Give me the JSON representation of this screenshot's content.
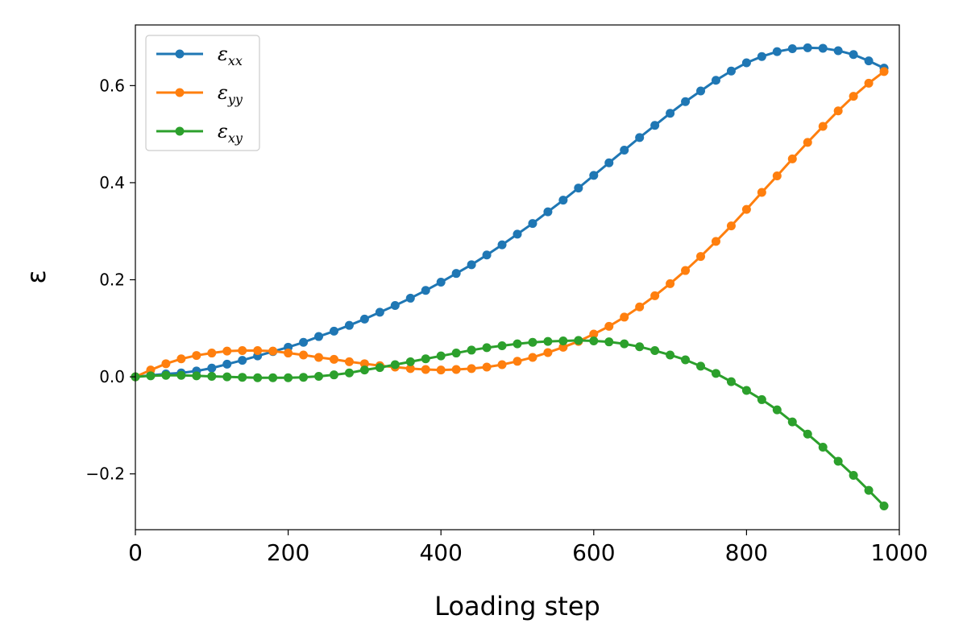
{
  "chart_data": {
    "type": "line",
    "title": "",
    "xlabel": "Loading step",
    "ylabel": "ε",
    "xlim": [
      0,
      1000
    ],
    "ylim": [
      -0.315,
      0.725
    ],
    "xticks": [
      0,
      200,
      400,
      600,
      800,
      1000
    ],
    "xtick_labels": [
      "0",
      "200",
      "400",
      "600",
      "800",
      "1000"
    ],
    "yticks": [
      -0.2,
      0.0,
      0.2,
      0.4,
      0.6
    ],
    "ytick_labels": [
      "−0.2",
      "0.0",
      "0.2",
      "0.4",
      "0.6"
    ],
    "grid": false,
    "legend_position": "top-left",
    "x": [
      0,
      20,
      40,
      60,
      80,
      100,
      120,
      140,
      160,
      180,
      200,
      220,
      240,
      260,
      280,
      300,
      320,
      340,
      360,
      380,
      400,
      420,
      440,
      460,
      480,
      500,
      520,
      540,
      560,
      580,
      600,
      620,
      640,
      660,
      680,
      700,
      720,
      740,
      760,
      780,
      800,
      820,
      840,
      860,
      880,
      900,
      920,
      940,
      960,
      980
    ],
    "series": [
      {
        "name": "ε",
        "subscript": "xx",
        "color": "#1f77b4",
        "values": [
          0.0,
          0.003,
          0.006,
          0.008,
          0.012,
          0.018,
          0.026,
          0.034,
          0.043,
          0.052,
          0.061,
          0.071,
          0.083,
          0.094,
          0.106,
          0.119,
          0.133,
          0.147,
          0.162,
          0.178,
          0.195,
          0.213,
          0.231,
          0.251,
          0.272,
          0.294,
          0.316,
          0.34,
          0.364,
          0.389,
          0.415,
          0.441,
          0.467,
          0.493,
          0.518,
          0.543,
          0.567,
          0.589,
          0.611,
          0.63,
          0.647,
          0.66,
          0.67,
          0.676,
          0.678,
          0.677,
          0.672,
          0.664,
          0.651,
          0.636
        ]
      },
      {
        "name": "ε",
        "subscript": "yy",
        "color": "#ff7f0e",
        "values": [
          0.0,
          0.014,
          0.027,
          0.037,
          0.044,
          0.049,
          0.053,
          0.054,
          0.054,
          0.053,
          0.049,
          0.045,
          0.04,
          0.036,
          0.031,
          0.027,
          0.023,
          0.02,
          0.017,
          0.015,
          0.014,
          0.015,
          0.017,
          0.02,
          0.025,
          0.032,
          0.04,
          0.05,
          0.061,
          0.073,
          0.088,
          0.104,
          0.123,
          0.144,
          0.167,
          0.192,
          0.219,
          0.248,
          0.279,
          0.311,
          0.345,
          0.38,
          0.414,
          0.449,
          0.483,
          0.516,
          0.548,
          0.578,
          0.605,
          0.629
        ]
      },
      {
        "name": "ε",
        "subscript": "xy",
        "color": "#2ca02c",
        "values": [
          0.0,
          0.002,
          0.003,
          0.003,
          0.002,
          0.001,
          0.0,
          -0.001,
          -0.002,
          -0.002,
          -0.002,
          -0.001,
          0.001,
          0.004,
          0.008,
          0.014,
          0.019,
          0.025,
          0.031,
          0.037,
          0.043,
          0.049,
          0.055,
          0.06,
          0.064,
          0.068,
          0.071,
          0.073,
          0.074,
          0.075,
          0.074,
          0.072,
          0.068,
          0.062,
          0.054,
          0.045,
          0.035,
          0.022,
          0.007,
          -0.01,
          -0.028,
          -0.047,
          -0.068,
          -0.093,
          -0.118,
          -0.145,
          -0.174,
          -0.203,
          -0.234,
          -0.266
        ]
      }
    ]
  }
}
